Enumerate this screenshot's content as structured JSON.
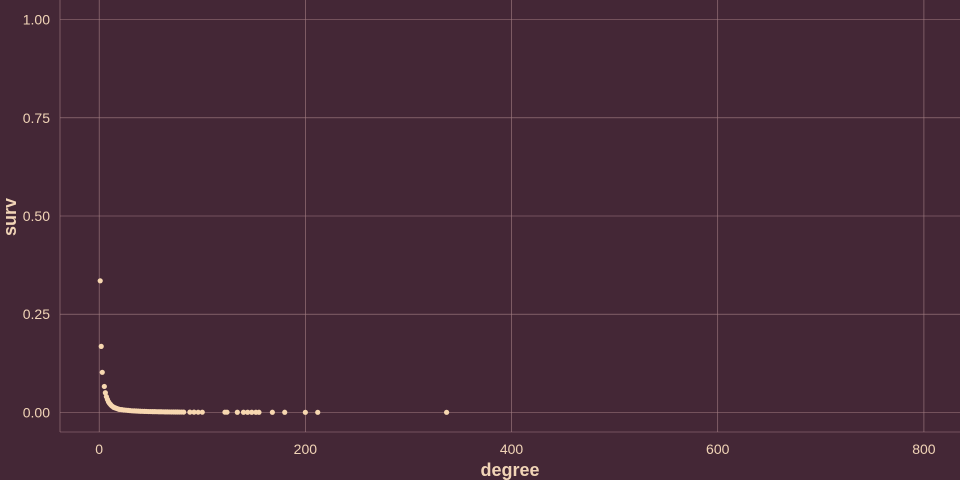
{
  "colors": {
    "background": "#442736",
    "grid": "#A47F84",
    "text": "#F1D4B7",
    "point": "#F7D7B0"
  },
  "chart_data": {
    "type": "scatter",
    "xlabel": "degree",
    "ylabel": "surv",
    "xlim": [
      -38,
      835
    ],
    "ylim": [
      -0.05,
      1.05
    ],
    "x_ticks": [
      0,
      200,
      400,
      600,
      800
    ],
    "x_tick_labels": [
      "0",
      "200",
      "400",
      "600",
      "800"
    ],
    "y_ticks": [
      0,
      0.25,
      0.5,
      0.75,
      1.0
    ],
    "y_tick_labels": [
      "0.00",
      "0.25",
      "0.50",
      "0.75",
      "1.00"
    ],
    "grid": true,
    "series": [
      {
        "x": [
          1,
          2,
          3,
          5,
          6,
          7,
          8,
          9,
          10,
          11,
          12,
          13,
          14,
          15,
          16,
          17,
          18,
          19,
          20,
          22,
          24,
          26,
          28,
          30,
          32,
          34,
          36,
          38,
          40,
          42,
          44,
          46,
          48,
          50,
          52,
          54,
          56,
          58,
          60,
          62,
          64,
          66,
          68,
          70,
          72,
          74,
          76,
          78,
          80,
          82,
          88,
          92,
          96,
          100,
          122,
          124,
          134,
          140,
          144,
          148,
          152,
          155,
          168,
          180,
          200,
          212,
          337
        ],
        "y": [
          0.335,
          0.168,
          0.102,
          0.066,
          0.05,
          0.04,
          0.033,
          0.027,
          0.023,
          0.02,
          0.017,
          0.015,
          0.013,
          0.012,
          0.011,
          0.01,
          0.009,
          0.008,
          0.0075,
          0.007,
          0.006,
          0.0055,
          0.005,
          0.0045,
          0.004,
          0.0037,
          0.0034,
          0.0031,
          0.0029,
          0.0027,
          0.0025,
          0.0023,
          0.0021,
          0.002,
          0.0019,
          0.0018,
          0.0017,
          0.0016,
          0.0015,
          0.0014,
          0.0013,
          0.0012,
          0.0011,
          0.001,
          0.001,
          0.0009,
          0.0009,
          0.0008,
          0.0008,
          0.0007,
          0.0006,
          0.0006,
          0.0005,
          0.0005,
          0.0004,
          0.0004,
          0.0003,
          0.0003,
          0.0003,
          0.0003,
          0.0002,
          0.0002,
          0.0002,
          0.0002,
          0.0001,
          0.0001,
          0.0001
        ]
      }
    ]
  }
}
